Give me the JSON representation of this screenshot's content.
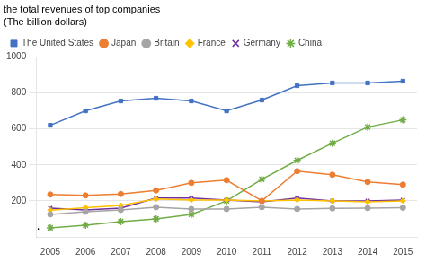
{
  "chart_data": {
    "type": "line",
    "title": "the total revenues of top companies",
    "subtitle": "(The billion dollars)",
    "x": [
      2005,
      2006,
      2007,
      2008,
      2009,
      2010,
      2011,
      2012,
      2013,
      2014,
      2015
    ],
    "series": [
      {
        "name": "The United States",
        "color": "#4472C4",
        "marker": "square",
        "values": [
          620,
          700,
          755,
          770,
          755,
          700,
          760,
          840,
          855,
          855,
          865
        ]
      },
      {
        "name": "Japan",
        "color": "#ED7D31",
        "marker": "circle",
        "values": [
          235,
          230,
          238,
          258,
          300,
          315,
          200,
          365,
          345,
          305,
          290
        ]
      },
      {
        "name": "Britain",
        "color": "#A5A5A5",
        "marker": "circle",
        "values": [
          125,
          140,
          150,
          165,
          155,
          155,
          165,
          155,
          158,
          160,
          162
        ]
      },
      {
        "name": "France",
        "color": "#FFC000",
        "marker": "diamond",
        "values": [
          148,
          162,
          175,
          210,
          205,
          205,
          200,
          205,
          200,
          195,
          200
        ]
      },
      {
        "name": "Germany",
        "color": "#7030A0",
        "marker": "x",
        "values": [
          160,
          150,
          160,
          215,
          215,
          205,
          195,
          215,
          200,
          200,
          205
        ]
      },
      {
        "name": "China",
        "color": "#70AD47",
        "marker": "star",
        "values": [
          50,
          65,
          85,
          100,
          125,
          200,
          320,
          425,
          520,
          610,
          650
        ]
      }
    ],
    "xlim": [
      2004.6,
      2015.4
    ],
    "xticks": [
      2005,
      2006,
      2007,
      2008,
      2009,
      2010,
      2011,
      2012,
      2013,
      2014,
      2015
    ],
    "ylim": [
      0,
      1000
    ],
    "yticks": [
      200,
      400,
      600,
      800,
      1000
    ],
    "grid": true,
    "legend": "top",
    "annotations": [
      {
        "text": "·",
        "x": 2004.6,
        "y": 8
      }
    ]
  }
}
